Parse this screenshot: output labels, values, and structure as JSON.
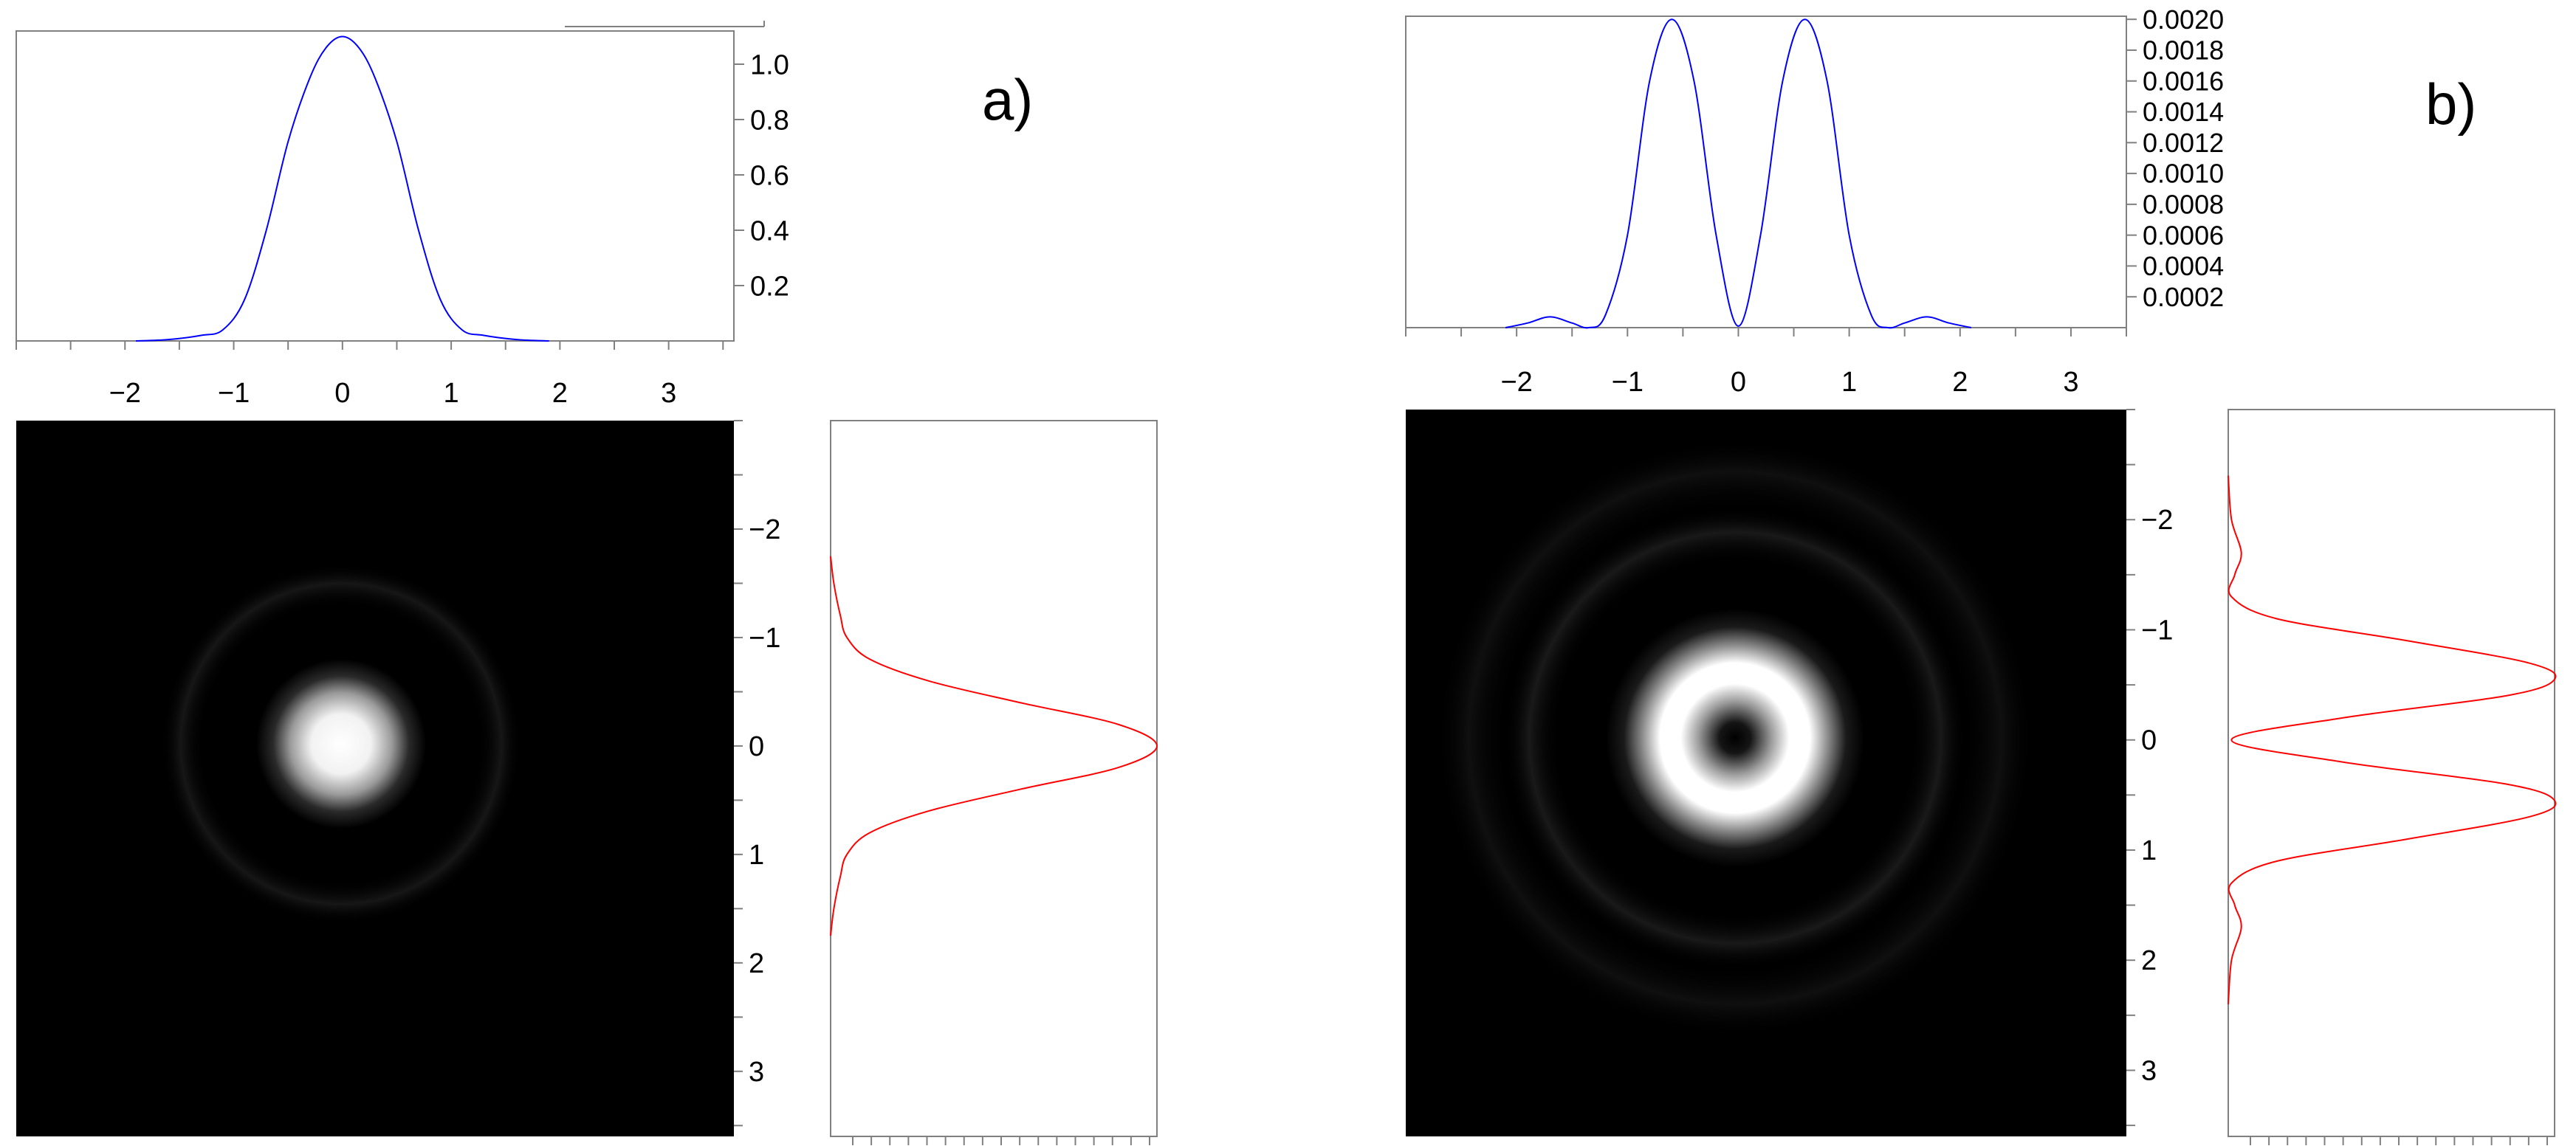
{
  "chart_data": [
    {
      "panel": "a)",
      "type": "line",
      "subplot": "top-profile",
      "series": [
        {
          "color": "#0000ff",
          "x": [
            -1.9,
            -1.6,
            -1.3,
            -1.1,
            -0.9,
            -0.7,
            -0.5,
            -0.3,
            -0.15,
            0,
            0.15,
            0.3,
            0.5,
            0.7,
            0.9,
            1.1,
            1.3,
            1.6,
            1.9
          ],
          "y": [
            0,
            0.005,
            0.02,
            0.04,
            0.15,
            0.4,
            0.72,
            0.95,
            1.06,
            1.1,
            1.06,
            0.95,
            0.72,
            0.4,
            0.15,
            0.04,
            0.02,
            0.005,
            0
          ]
        }
      ],
      "xlim": [
        -3.0,
        3.6
      ],
      "ylim": [
        0,
        1.12
      ],
      "xticks": [
        "−2",
        "−1",
        "0",
        "1",
        "2",
        "3"
      ],
      "xtick_values": [
        -2,
        -1,
        0,
        1,
        2,
        3
      ],
      "yticks": [
        "1.0",
        "0.8",
        "0.6",
        "0.4",
        "0.2"
      ],
      "ytick_values": [
        1.0,
        0.8,
        0.6,
        0.4,
        0.2
      ]
    },
    {
      "panel": "a)",
      "type": "heatmap",
      "subplot": "intensity-map",
      "description_values": {
        "shape": "gaussian-spot",
        "center": [
          0,
          0
        ],
        "width": 0.35
      },
      "xlim": [
        -3.0,
        3.6
      ],
      "ylim": [
        -3.0,
        3.6
      ],
      "yticks": [
        "−2",
        "−1",
        "0",
        "1",
        "2",
        "3"
      ],
      "ytick_values": [
        -2,
        -1,
        0,
        1,
        2,
        3
      ]
    },
    {
      "panel": "a)",
      "type": "line",
      "subplot": "side-profile",
      "series": [
        {
          "color": "#ff0000",
          "y": [
            -1.75,
            -1.5,
            -1.2,
            -1.0,
            -0.8,
            -0.6,
            -0.4,
            -0.2,
            0,
            0.2,
            0.4,
            0.6,
            0.8,
            1.0,
            1.2,
            1.5,
            1.75
          ],
          "x": [
            0,
            0.01,
            0.03,
            0.05,
            0.12,
            0.3,
            0.58,
            0.88,
            1.0,
            0.88,
            0.58,
            0.3,
            0.12,
            0.05,
            0.03,
            0.01,
            0
          ]
        }
      ],
      "ylim": [
        -3.0,
        3.6
      ],
      "xlim": [
        0,
        1.0
      ]
    },
    {
      "panel": "b)",
      "type": "line",
      "subplot": "top-profile",
      "series": [
        {
          "color": "#0000ff",
          "x": [
            -2.1,
            -1.9,
            -1.7,
            -1.5,
            -1.35,
            -1.2,
            -1.0,
            -0.8,
            -0.6,
            -0.4,
            -0.2,
            0,
            0.2,
            0.4,
            0.6,
            0.8,
            1.0,
            1.2,
            1.35,
            1.5,
            1.7,
            1.9,
            2.1
          ],
          "y": [
            0.0,
            3e-05,
            7e-05,
            3e-05,
            0.0,
            8e-05,
            0.0006,
            0.0016,
            0.002,
            0.0016,
            0.0006,
            1e-05,
            0.0006,
            0.0016,
            0.002,
            0.0016,
            0.0006,
            8e-05,
            0.0,
            3e-05,
            7e-05,
            3e-05,
            0.0
          ]
        }
      ],
      "xlim": [
        -3.0,
        3.5
      ],
      "ylim": [
        0,
        0.00202
      ],
      "xticks": [
        "−2",
        "−1",
        "0",
        "1",
        "2",
        "3"
      ],
      "xtick_values": [
        -2,
        -1,
        0,
        1,
        2,
        3
      ],
      "yticks": [
        "0.0020",
        "0.0018",
        "0.0016",
        "0.0014",
        "0.0012",
        "0.0010",
        "0.0008",
        "0.0006",
        "0.0004",
        "0.0002"
      ],
      "ytick_values": [
        0.002,
        0.0018,
        0.0016,
        0.0014,
        0.0012,
        0.001,
        0.0008,
        0.0006,
        0.0004,
        0.0002
      ]
    },
    {
      "panel": "b)",
      "type": "heatmap",
      "subplot": "intensity-map",
      "description_values": {
        "shape": "donut-ring",
        "center": [
          0,
          0
        ],
        "ring_radius": 0.58
      },
      "xlim": [
        -3.0,
        3.5
      ],
      "ylim": [
        -3.0,
        3.6
      ],
      "yticks": [
        "−2",
        "−1",
        "0",
        "1",
        "2",
        "3"
      ],
      "ytick_values": [
        -2,
        -1,
        0,
        1,
        2,
        3
      ]
    },
    {
      "panel": "b)",
      "type": "line",
      "subplot": "side-profile",
      "series": [
        {
          "color": "#ff0000",
          "y": [
            -2.4,
            -2.0,
            -1.7,
            -1.5,
            -1.3,
            -1.1,
            -0.9,
            -0.7,
            -0.55,
            -0.4,
            -0.2,
            0,
            0.2,
            0.4,
            0.55,
            0.7,
            0.9,
            1.1,
            1.3,
            1.5,
            1.7,
            2.0,
            2.4
          ],
          "x": [
            0,
            0.01,
            0.04,
            0.02,
            0.01,
            0.15,
            0.55,
            0.92,
            1.0,
            0.85,
            0.35,
            0.01,
            0.35,
            0.85,
            1.0,
            0.92,
            0.55,
            0.15,
            0.01,
            0.02,
            0.04,
            0.01,
            0
          ]
        }
      ],
      "ylim": [
        -3.0,
        3.6
      ],
      "xlim": [
        0,
        1.0
      ]
    }
  ],
  "labels": {
    "panel_a": "a)",
    "panel_b": "b)"
  }
}
